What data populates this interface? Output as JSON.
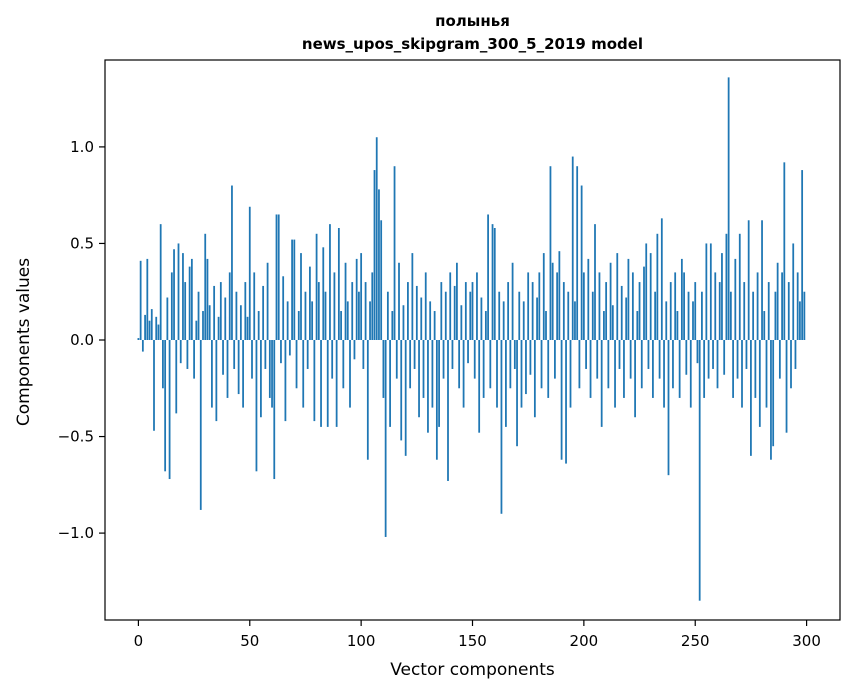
{
  "figure": {
    "title_line1": "полынья",
    "title_line2": "news_upos_skipgram_300_5_2019 model"
  },
  "chart_data": {
    "type": "bar",
    "title": "полынья — news_upos_skipgram_300_5_2019 model",
    "xlabel": "Vector components",
    "ylabel": "Components values",
    "xlim": [
      -15,
      315
    ],
    "ylim": [
      -1.45,
      1.45
    ],
    "grid": false,
    "legend": "none",
    "bar_color": "#1f77b4",
    "xticks": {
      "values": [
        0,
        50,
        100,
        150,
        200,
        250,
        300
      ],
      "labels": [
        "0",
        "50",
        "100",
        "150",
        "200",
        "250",
        "300"
      ]
    },
    "yticks": {
      "values": [
        -1.0,
        -0.5,
        0.0,
        0.5,
        1.0
      ],
      "labels": [
        "−1.0",
        "−0.5",
        "0.0",
        "0.5",
        "1.0"
      ]
    },
    "x_start": 0,
    "values": [
      0.01,
      0.41,
      -0.06,
      0.13,
      0.42,
      0.1,
      0.16,
      -0.47,
      0.12,
      0.08,
      0.6,
      -0.25,
      -0.68,
      0.22,
      -0.72,
      0.35,
      0.47,
      -0.38,
      0.5,
      -0.12,
      0.45,
      0.3,
      -0.15,
      0.38,
      0.42,
      -0.2,
      0.1,
      0.25,
      -0.88,
      0.15,
      0.55,
      0.42,
      0.18,
      -0.35,
      0.28,
      -0.42,
      0.12,
      0.3,
      -0.18,
      0.22,
      -0.3,
      0.35,
      0.8,
      -0.15,
      0.25,
      -0.28,
      0.18,
      -0.35,
      0.3,
      0.12,
      0.69,
      -0.2,
      0.35,
      -0.68,
      0.15,
      -0.4,
      0.28,
      -0.15,
      0.4,
      -0.3,
      -0.35,
      -0.72,
      0.65,
      0.65,
      -0.12,
      0.33,
      -0.42,
      0.2,
      -0.08,
      0.52,
      0.52,
      -0.25,
      0.15,
      0.45,
      -0.35,
      0.25,
      -0.15,
      0.38,
      0.2,
      -0.42,
      0.55,
      0.3,
      -0.45,
      0.48,
      0.25,
      -0.45,
      0.6,
      -0.2,
      0.35,
      -0.45,
      0.58,
      0.15,
      -0.25,
      0.4,
      0.2,
      -0.35,
      0.3,
      -0.1,
      0.42,
      0.25,
      0.45,
      -0.15,
      0.3,
      -0.62,
      0.2,
      0.35,
      0.88,
      1.05,
      0.78,
      0.62,
      -0.3,
      -1.02,
      0.25,
      -0.45,
      0.15,
      0.9,
      -0.2,
      0.4,
      -0.52,
      0.18,
      -0.6,
      0.3,
      -0.25,
      0.45,
      -0.15,
      0.28,
      -0.4,
      0.22,
      -0.3,
      0.35,
      -0.48,
      0.2,
      -0.35,
      0.15,
      -0.62,
      -0.45,
      0.3,
      -0.2,
      0.25,
      -0.73,
      0.35,
      -0.15,
      0.28,
      0.4,
      -0.25,
      0.18,
      -0.35,
      0.3,
      -0.12,
      0.25,
      0.3,
      -0.2,
      0.35,
      -0.48,
      0.22,
      -0.3,
      0.15,
      0.65,
      -0.25,
      0.6,
      0.58,
      -0.35,
      0.25,
      -0.9,
      0.2,
      -0.45,
      0.3,
      -0.25,
      0.4,
      -0.15,
      -0.55,
      0.25,
      -0.35,
      0.2,
      -0.28,
      0.35,
      -0.18,
      0.3,
      -0.4,
      0.22,
      0.35,
      -0.25,
      0.45,
      0.15,
      -0.3,
      0.9,
      0.4,
      -0.2,
      0.35,
      0.46,
      -0.62,
      0.3,
      -0.64,
      0.25,
      -0.35,
      0.95,
      0.2,
      0.9,
      -0.25,
      0.8,
      0.35,
      -0.15,
      0.42,
      -0.3,
      0.25,
      0.6,
      -0.2,
      0.35,
      -0.45,
      0.15,
      0.3,
      -0.25,
      0.4,
      0.18,
      -0.35,
      0.45,
      -0.15,
      0.28,
      -0.3,
      0.22,
      0.42,
      -0.2,
      0.35,
      -0.4,
      0.15,
      0.3,
      -0.25,
      0.38,
      0.5,
      -0.15,
      0.45,
      -0.3,
      0.25,
      0.55,
      -0.2,
      0.63,
      -0.35,
      0.2,
      -0.7,
      0.3,
      -0.25,
      0.35,
      0.15,
      -0.3,
      0.42,
      0.35,
      -0.18,
      0.25,
      -0.35,
      0.2,
      0.3,
      -0.12,
      -1.35,
      0.25,
      -0.3,
      0.5,
      -0.2,
      0.5,
      -0.15,
      0.35,
      -0.25,
      0.3,
      0.45,
      -0.18,
      0.55,
      1.36,
      0.25,
      -0.3,
      0.42,
      -0.2,
      0.55,
      -0.35,
      0.3,
      -0.15,
      0.62,
      -0.6,
      0.25,
      -0.3,
      0.35,
      -0.45,
      0.62,
      0.15,
      -0.35,
      0.3,
      -0.62,
      -0.55,
      0.25,
      0.4,
      -0.2,
      0.35,
      0.92,
      -0.48,
      0.3,
      -0.25,
      0.5,
      -0.15,
      0.35,
      0.2,
      0.88,
      0.25
    ]
  }
}
